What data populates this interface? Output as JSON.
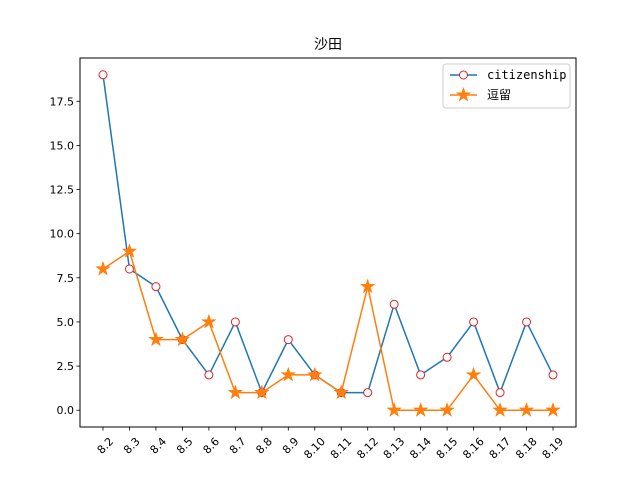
{
  "chart_data": {
    "type": "line",
    "title": "沙田",
    "xlabel": "",
    "ylabel": "",
    "categories": [
      "8.2",
      "8.3",
      "8.4",
      "8.5",
      "8.6",
      "8.7",
      "8.8",
      "8.9",
      "8.10",
      "8.11",
      "8.12",
      "8.13",
      "8.14",
      "8.15",
      "8.16",
      "8.17",
      "8.18",
      "8.19"
    ],
    "ylim": [
      -0.95,
      19.95
    ],
    "yticks": [
      "0.0",
      "2.5",
      "5.0",
      "7.5",
      "10.0",
      "12.5",
      "15.0",
      "17.5"
    ],
    "legend_position": "top-right",
    "grid": false,
    "series": [
      {
        "name": "citizenship",
        "color": "#1f77b4",
        "marker": "circle-open-red",
        "marker_edge": "#d62728",
        "values": [
          19,
          8,
          7,
          4,
          2,
          5,
          1,
          4,
          2,
          1,
          1,
          6,
          2,
          3,
          5,
          1,
          5,
          2
        ]
      },
      {
        "name": "逗留",
        "color": "#ff7f0e",
        "marker": "star",
        "values": [
          8,
          9,
          4,
          4,
          5,
          1,
          1,
          2,
          2,
          1,
          7,
          0,
          0,
          0,
          2,
          0,
          0,
          0
        ]
      }
    ]
  }
}
